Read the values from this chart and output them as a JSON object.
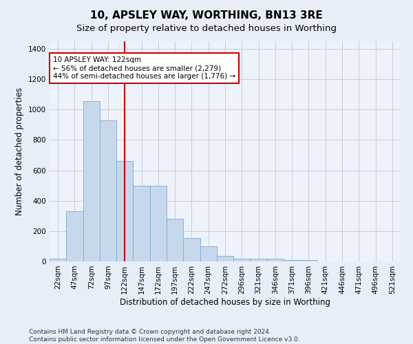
{
  "title": "10, APSLEY WAY, WORTHING, BN13 3RE",
  "subtitle": "Size of property relative to detached houses in Worthing",
  "xlabel": "Distribution of detached houses by size in Worthing",
  "ylabel": "Number of detached properties",
  "categories": [
    "22sqm",
    "47sqm",
    "72sqm",
    "97sqm",
    "122sqm",
    "147sqm",
    "172sqm",
    "197sqm",
    "222sqm",
    "247sqm",
    "272sqm",
    "296sqm",
    "321sqm",
    "346sqm",
    "371sqm",
    "396sqm",
    "421sqm",
    "446sqm",
    "471sqm",
    "496sqm",
    "521sqm"
  ],
  "values": [
    20,
    330,
    1055,
    930,
    660,
    500,
    500,
    280,
    155,
    100,
    35,
    20,
    20,
    20,
    10,
    10,
    0,
    0,
    0,
    0,
    0
  ],
  "bar_color": "#c8d8ec",
  "bar_edge_color": "#7aaad0",
  "vline_x": 4,
  "vline_color": "#cc0000",
  "annotation_text": "10 APSLEY WAY: 122sqm\n← 56% of detached houses are smaller (2,279)\n44% of semi-detached houses are larger (1,776) →",
  "annotation_box_color": "#ffffff",
  "annotation_box_edge_color": "#cc0000",
  "ylim": [
    0,
    1450
  ],
  "yticks": [
    0,
    200,
    400,
    600,
    800,
    1000,
    1200,
    1400
  ],
  "footer_text": "Contains HM Land Registry data © Crown copyright and database right 2024.\nContains public sector information licensed under the Open Government Licence v3.0.",
  "title_fontsize": 11,
  "subtitle_fontsize": 9.5,
  "label_fontsize": 8.5,
  "tick_fontsize": 7.5,
  "footer_fontsize": 6.5,
  "bg_color": "#e8eef8",
  "plot_bg_color": "#eef2fa"
}
